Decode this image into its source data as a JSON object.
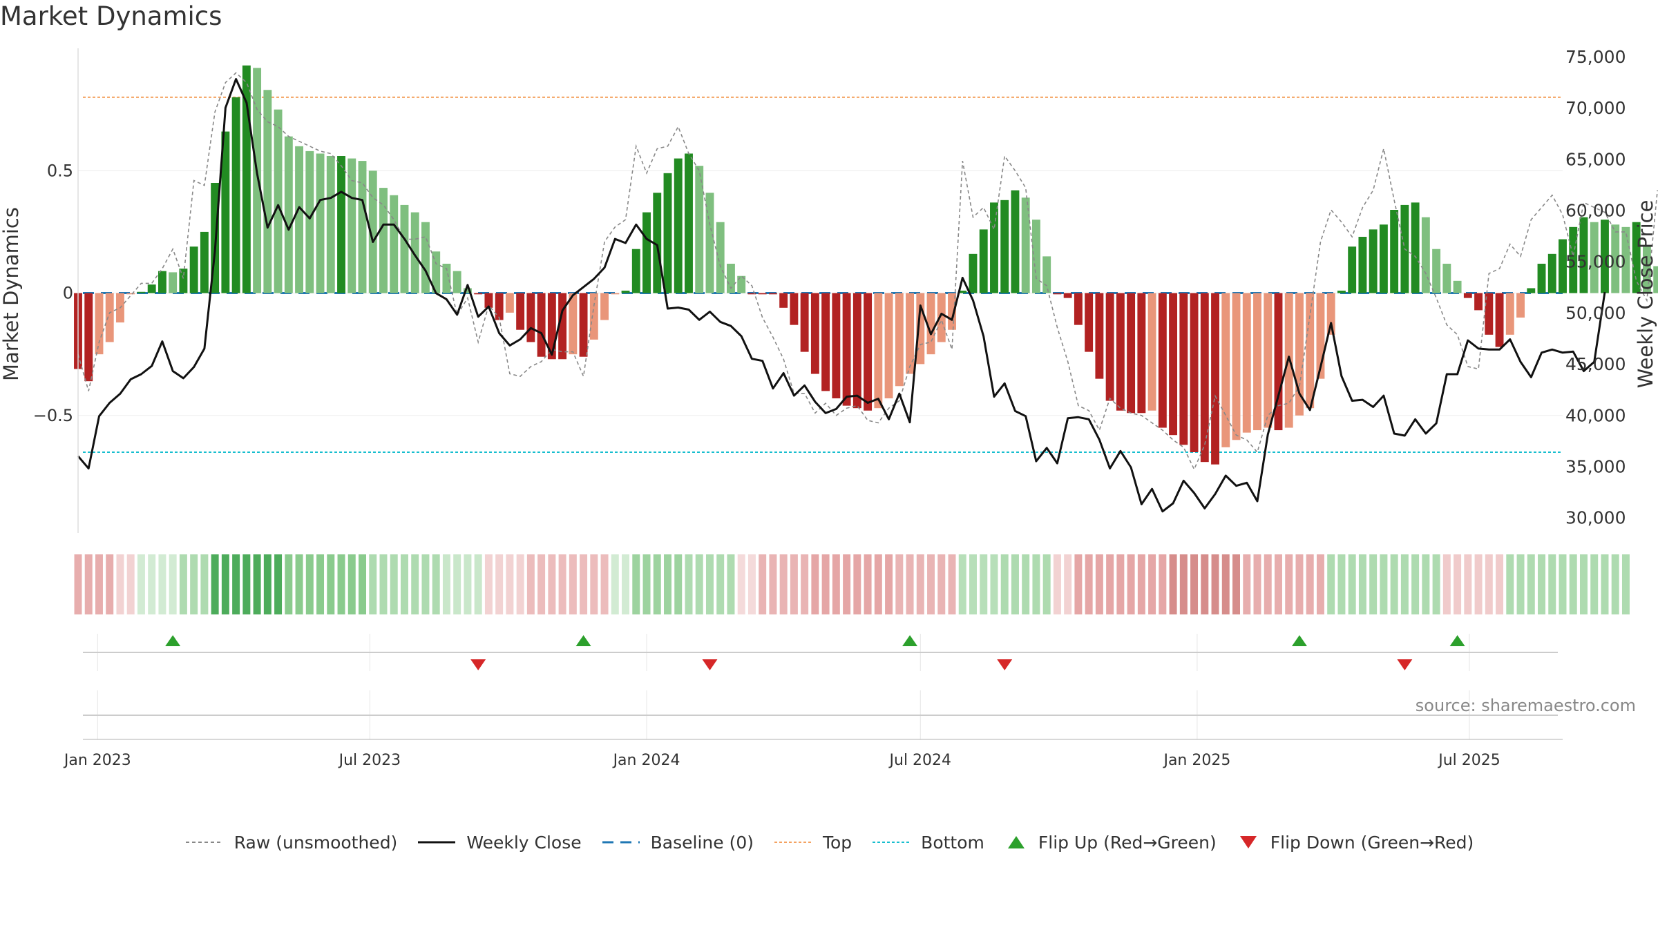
{
  "title": "Market Dynamics",
  "source": "source: sharemaestro.com",
  "colors": {
    "green_strong": "#228b22",
    "green_light": "#7fbf7f",
    "red_strong": "#b22222",
    "red_light": "#e9967a",
    "raw_line": "#888888",
    "close_line": "#111111",
    "baseline": "#1f77b4",
    "top": "#f4a261",
    "bottom": "#17becf",
    "flip_up": "#2ca02c",
    "flip_down": "#d62728"
  },
  "legend": [
    {
      "key": "raw",
      "label": "Raw (unsmoothed)"
    },
    {
      "key": "close",
      "label": "Weekly Close"
    },
    {
      "key": "baseline",
      "label": "Baseline (0)"
    },
    {
      "key": "top",
      "label": "Top"
    },
    {
      "key": "bottom",
      "label": "Bottom"
    },
    {
      "key": "flip_up",
      "label": "Flip Up (Red→Green)"
    },
    {
      "key": "flip_down",
      "label": "Flip Down (Green→Red)"
    }
  ],
  "chart_data": {
    "type": "bar",
    "y_label_left": "Market Dynamics",
    "y_label_right": "Weekly Close Price",
    "y_left_ticks": [
      {
        "value": 0.5,
        "label": "0.5"
      },
      {
        "value": 0,
        "label": "0"
      },
      {
        "value": -0.5,
        "label": "−0.5"
      }
    ],
    "y_left_range": [
      -0.98,
      1.0
    ],
    "y_right_ticks": [
      {
        "value": 75000,
        "label": "75,000"
      },
      {
        "value": 70000,
        "label": "70,000"
      },
      {
        "value": 65000,
        "label": "65,000"
      },
      {
        "value": 60000,
        "label": "60,000"
      },
      {
        "value": 55000,
        "label": "55,000"
      },
      {
        "value": 50000,
        "label": "50,000"
      },
      {
        "value": 45000,
        "label": "45,000"
      },
      {
        "value": 40000,
        "label": "40,000"
      },
      {
        "value": 35000,
        "label": "35,000"
      },
      {
        "value": 30000,
        "label": "30,000"
      }
    ],
    "y_right_range": [
      28500,
      75800
    ],
    "x_date_range": [
      "2022-12-19",
      "2025-09-01"
    ],
    "x_ticks": [
      {
        "date": "2023-01-01",
        "label": "Jan 2023"
      },
      {
        "date": "2023-07-01",
        "label": "Jul 2023"
      },
      {
        "date": "2024-01-01",
        "label": "Jan 2024"
      },
      {
        "date": "2024-07-01",
        "label": "Jul 2024"
      },
      {
        "date": "2025-01-01",
        "label": "Jan 2025"
      },
      {
        "date": "2025-07-01",
        "label": "Jul 2025"
      }
    ],
    "top_level": 0.8,
    "bottom_level": -0.65,
    "baseline": 0,
    "weeks_start": "2022-12-19",
    "dynamics": [
      -0.31,
      -0.36,
      -0.25,
      -0.2,
      -0.12,
      -0.005,
      0.005,
      0.035,
      0.09,
      0.085,
      0.1,
      0.19,
      0.25,
      0.45,
      0.66,
      0.8,
      0.93,
      0.92,
      0.83,
      0.75,
      0.64,
      0.6,
      0.58,
      0.57,
      0.56,
      0.56,
      0.55,
      0.54,
      0.5,
      0.43,
      0.4,
      0.36,
      0.33,
      0.29,
      0.17,
      0.12,
      0.09,
      0.02,
      -0.005,
      -0.06,
      -0.11,
      -0.08,
      -0.15,
      -0.2,
      -0.26,
      -0.27,
      -0.27,
      -0.25,
      -0.26,
      -0.19,
      -0.11,
      -0.005,
      0.01,
      0.18,
      0.33,
      0.41,
      0.49,
      0.55,
      0.57,
      0.52,
      0.41,
      0.29,
      0.12,
      0.07,
      -0.005,
      -0.005,
      -0.005,
      -0.06,
      -0.13,
      -0.24,
      -0.33,
      -0.4,
      -0.43,
      -0.46,
      -0.47,
      -0.48,
      -0.47,
      -0.43,
      -0.38,
      -0.33,
      -0.29,
      -0.25,
      -0.2,
      -0.15,
      0.01,
      0.16,
      0.26,
      0.37,
      0.38,
      0.42,
      0.39,
      0.3,
      0.15,
      -0.005,
      -0.02,
      -0.13,
      -0.24,
      -0.35,
      -0.44,
      -0.48,
      -0.49,
      -0.49,
      -0.48,
      -0.55,
      -0.58,
      -0.62,
      -0.65,
      -0.69,
      -0.7,
      -0.63,
      -0.6,
      -0.57,
      -0.56,
      -0.55,
      -0.56,
      -0.55,
      -0.5,
      -0.47,
      -0.35,
      -0.17,
      0.01,
      0.19,
      0.23,
      0.26,
      0.28,
      0.34,
      0.36,
      0.37,
      0.31,
      0.18,
      0.12,
      0.05,
      -0.02,
      -0.07,
      -0.17,
      -0.22,
      -0.17,
      -0.1,
      0.02,
      0.12,
      0.16,
      0.22,
      0.27,
      0.31,
      0.29,
      0.3,
      0.28,
      0.27,
      0.29,
      0.19,
      0.11,
      0.15
    ],
    "raw": [
      -0.25,
      -0.4,
      -0.2,
      -0.08,
      -0.06,
      -0.01,
      0.04,
      0.04,
      0.1,
      0.18,
      0.06,
      0.46,
      0.44,
      0.74,
      0.86,
      0.9,
      0.86,
      0.75,
      0.7,
      0.68,
      0.64,
      0.62,
      0.6,
      0.58,
      0.57,
      0.52,
      0.46,
      0.45,
      0.39,
      0.36,
      0.3,
      0.22,
      0.22,
      0.23,
      0.12,
      0.1,
      -0.09,
      -0.02,
      -0.2,
      -0.05,
      -0.1,
      -0.33,
      -0.34,
      -0.3,
      -0.28,
      -0.23,
      -0.24,
      -0.24,
      -0.34,
      -0.05,
      0.21,
      0.27,
      0.3,
      0.6,
      0.49,
      0.59,
      0.6,
      0.68,
      0.57,
      0.5,
      0.28,
      0.11,
      0.02,
      0.07,
      0.03,
      -0.1,
      -0.18,
      -0.27,
      -0.41,
      -0.41,
      -0.49,
      -0.45,
      -0.5,
      -0.47,
      -0.46,
      -0.52,
      -0.53,
      -0.47,
      -0.44,
      -0.3,
      -0.21,
      -0.2,
      -0.11,
      -0.23,
      0.54,
      0.31,
      0.35,
      0.26,
      0.56,
      0.5,
      0.43,
      0.06,
      0.03,
      -0.14,
      -0.28,
      -0.46,
      -0.48,
      -0.56,
      -0.43,
      -0.47,
      -0.49,
      -0.5,
      -0.53,
      -0.56,
      -0.6,
      -0.63,
      -0.72,
      -0.62,
      -0.42,
      -0.5,
      -0.58,
      -0.6,
      -0.65,
      -0.5,
      -0.46,
      -0.45,
      -0.38,
      -0.09,
      0.21,
      0.34,
      0.29,
      0.23,
      0.35,
      0.42,
      0.59,
      0.38,
      0.18,
      0.15,
      0.08,
      -0.02,
      -0.13,
      -0.17,
      -0.3,
      -0.31,
      0.08,
      0.1,
      0.2,
      0.15,
      0.3,
      0.35,
      0.4,
      0.32,
      0.15,
      0.37,
      0.35,
      0.33,
      0.25,
      0.25,
      0.05,
      -0.03,
      0.42
    ],
    "close": [
      36000,
      34800,
      39900,
      41200,
      42100,
      43500,
      44000,
      44800,
      47200,
      44300,
      43600,
      44700,
      46500,
      56000,
      70000,
      72800,
      70500,
      63600,
      58300,
      60500,
      58100,
      60300,
      59200,
      61000,
      61200,
      61800,
      61200,
      61000,
      56900,
      58600,
      58600,
      57200,
      55600,
      54100,
      51900,
      51300,
      49800,
      52700,
      49600,
      50600,
      48000,
      46800,
      47400,
      48500,
      48000,
      45900,
      50200,
      51700,
      52500,
      53300,
      54400,
      57200,
      56800,
      58600,
      57200,
      56600,
      50400,
      50500,
      50300,
      49300,
      50100,
      49100,
      48700,
      47700,
      45500,
      45300,
      42600,
      44100,
      41900,
      42900,
      41300,
      40200,
      40600,
      41800,
      41900,
      41200,
      41600,
      39600,
      42100,
      39300,
      50700,
      47900,
      49900,
      49300,
      53400,
      51200,
      47700,
      41800,
      43100,
      40400,
      39900,
      35500,
      36800,
      35300,
      39700,
      39800,
      39600,
      37600,
      34800,
      36500,
      34900,
      31300,
      32800,
      30600,
      31400,
      33600,
      32400,
      30900,
      32300,
      34100,
      33100,
      33400,
      31600,
      38100,
      41900,
      45700,
      42100,
      40500,
      44700,
      49000,
      43800,
      41400,
      41500,
      40800,
      41900,
      38200,
      38000,
      39600,
      38200,
      39200,
      44000,
      44000,
      47300,
      46500,
      46400,
      46400,
      47400,
      45200,
      43700,
      46100,
      46400,
      46100,
      46200,
      44300,
      45200,
      52000
    ],
    "strip_bands": [
      {
        "from": 0,
        "to": 4,
        "color": "#d46a6a",
        "alpha": 0.55
      },
      {
        "from": 4,
        "to": 6,
        "color": "#d46a6a",
        "alpha": 0.3
      },
      {
        "from": 6,
        "to": 10,
        "color": "#4caf50",
        "alpha": 0.25
      },
      {
        "from": 10,
        "to": 13,
        "color": "#4caf50",
        "alpha": 0.45
      },
      {
        "from": 13,
        "to": 20,
        "color": "#2e9e3e",
        "alpha": 0.85
      },
      {
        "from": 20,
        "to": 28,
        "color": "#4caf50",
        "alpha": 0.65
      },
      {
        "from": 28,
        "to": 35,
        "color": "#4caf50",
        "alpha": 0.45
      },
      {
        "from": 35,
        "to": 39,
        "color": "#4caf50",
        "alpha": 0.3
      },
      {
        "from": 39,
        "to": 43,
        "color": "#d46a6a",
        "alpha": 0.3
      },
      {
        "from": 43,
        "to": 51,
        "color": "#d46a6a",
        "alpha": 0.45
      },
      {
        "from": 51,
        "to": 53,
        "color": "#4caf50",
        "alpha": 0.25
      },
      {
        "from": 53,
        "to": 58,
        "color": "#4caf50",
        "alpha": 0.55
      },
      {
        "from": 58,
        "to": 63,
        "color": "#4caf50",
        "alpha": 0.45
      },
      {
        "from": 63,
        "to": 65,
        "color": "#d46a6a",
        "alpha": 0.25
      },
      {
        "from": 65,
        "to": 70,
        "color": "#d46a6a",
        "alpha": 0.5
      },
      {
        "from": 70,
        "to": 78,
        "color": "#d46a6a",
        "alpha": 0.6
      },
      {
        "from": 78,
        "to": 84,
        "color": "#d46a6a",
        "alpha": 0.5
      },
      {
        "from": 84,
        "to": 88,
        "color": "#4caf50",
        "alpha": 0.4
      },
      {
        "from": 88,
        "to": 93,
        "color": "#4caf50",
        "alpha": 0.45
      },
      {
        "from": 93,
        "to": 95,
        "color": "#d46a6a",
        "alpha": 0.3
      },
      {
        "from": 95,
        "to": 104,
        "color": "#d46a6a",
        "alpha": 0.6
      },
      {
        "from": 104,
        "to": 111,
        "color": "#c0504d",
        "alpha": 0.65
      },
      {
        "from": 111,
        "to": 119,
        "color": "#d46a6a",
        "alpha": 0.55
      },
      {
        "from": 119,
        "to": 130,
        "color": "#4caf50",
        "alpha": 0.45
      },
      {
        "from": 130,
        "to": 136,
        "color": "#d46a6a",
        "alpha": 0.35
      },
      {
        "from": 136,
        "to": 148,
        "color": "#4caf50",
        "alpha": 0.45
      }
    ],
    "flips": [
      {
        "type": "up",
        "date": "2023-02-20"
      },
      {
        "type": "down",
        "date": "2023-09-11"
      },
      {
        "type": "up",
        "date": "2023-11-20"
      },
      {
        "type": "down",
        "date": "2024-02-12"
      },
      {
        "type": "up",
        "date": "2024-06-24"
      },
      {
        "type": "down",
        "date": "2024-08-26"
      },
      {
        "type": "up",
        "date": "2025-03-10"
      },
      {
        "type": "down",
        "date": "2025-05-19"
      },
      {
        "type": "up",
        "date": "2025-06-23"
      }
    ]
  }
}
